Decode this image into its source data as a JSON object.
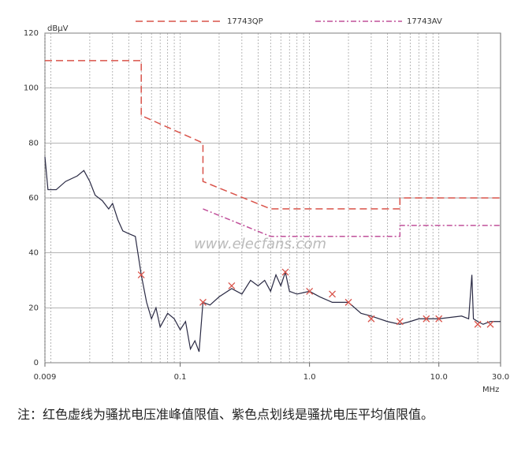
{
  "chart_data": {
    "type": "line",
    "log_x": true,
    "grid": true,
    "minor_x_grid": true,
    "ylabel": "dBμV",
    "xlabel": "MHz",
    "watermark": "www.elecfans.com",
    "xlim": [
      0.009,
      30
    ],
    "ylim": [
      0,
      120
    ],
    "xticks": [
      0.009,
      0.1,
      {
        "value": 1,
        "label": "1.0"
      },
      {
        "value": 10,
        "label": "10.0"
      },
      {
        "value": 30,
        "label": "30.0"
      }
    ],
    "yticks": [
      0,
      20,
      40,
      60,
      80,
      100,
      120
    ],
    "series": [
      {
        "name": "17743QP",
        "color": "#d9534a",
        "dash": "dash",
        "x": [
          0.009,
          0.05,
          0.05,
          0.15,
          0.15,
          0.5,
          5,
          5,
          30
        ],
        "values": [
          110,
          110,
          90,
          80,
          66,
          56,
          56,
          60,
          60
        ]
      },
      {
        "name": "17743AV",
        "color": "#c0509a",
        "dash": "dashdot",
        "x": [
          0.15,
          0.5,
          5,
          5,
          30
        ],
        "values": [
          56,
          46,
          46,
          50,
          50
        ]
      },
      {
        "color": "#2a2a44",
        "x": [
          0.009,
          0.0095,
          0.011,
          0.013,
          0.016,
          0.018,
          0.02,
          0.022,
          0.025,
          0.028,
          0.03,
          0.033,
          0.036,
          0.04,
          0.045,
          0.05,
          0.055,
          0.06,
          0.065,
          0.07,
          0.08,
          0.09,
          0.1,
          0.11,
          0.12,
          0.13,
          0.14,
          0.15,
          0.17,
          0.2,
          0.25,
          0.3,
          0.35,
          0.4,
          0.45,
          0.5,
          0.55,
          0.6,
          0.65,
          0.7,
          0.8,
          1.0,
          1.2,
          1.5,
          2.0,
          2.5,
          3,
          4,
          5,
          6,
          7,
          10,
          15,
          17,
          18,
          18.5,
          20,
          22,
          25,
          30
        ],
        "values": [
          75,
          63,
          63,
          66,
          68,
          70,
          66,
          61,
          59,
          56,
          58,
          52,
          48,
          47,
          46,
          32,
          22,
          16,
          20,
          13,
          18,
          16,
          12,
          15,
          5,
          8,
          4,
          22,
          21,
          24,
          27,
          25,
          30,
          28,
          30,
          26,
          32,
          28,
          33,
          26,
          25,
          26,
          24,
          22,
          22,
          18,
          17,
          15,
          14,
          15,
          16,
          16,
          17,
          16,
          32,
          16,
          15,
          14,
          15,
          15
        ]
      },
      {
        "color": "#d9534a",
        "marker": "x",
        "x": [
          0.05,
          0.15,
          0.25,
          0.65,
          1.0,
          1.5,
          2,
          3,
          5,
          8,
          10,
          20,
          25
        ],
        "values": [
          32,
          22,
          28,
          33,
          26,
          25,
          22,
          16,
          15,
          16,
          16,
          14,
          14
        ]
      }
    ]
  },
  "note": "注：红色虚线为骚扰电压准峰值限值、紫色点划线是骚扰电压平均值限值。"
}
